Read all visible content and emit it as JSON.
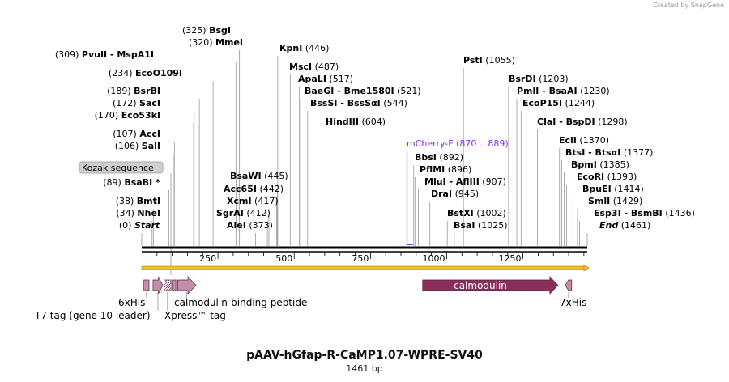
{
  "credit": "Created by SnapGene",
  "title": "pAAV-hGfap-R-CaMP1.07-WPRE-SV40",
  "length_label": "1461 bp",
  "sequence_length": 1461,
  "colors": {
    "backbone": "#000000",
    "orf_line": "#f0c030",
    "calmodulin": "#8b2f5a",
    "small_feature": "#c090a8",
    "primer": "#8a2be2",
    "label_box": "#d0d0d0"
  },
  "ruler": [
    "250",
    "500",
    "750",
    "1000",
    "1250"
  ],
  "sites": [
    {
      "name": "Start",
      "pos": "(0)",
      "bp": 0,
      "italic": true
    },
    {
      "name": "NheI",
      "pos": "(34)",
      "bp": 34
    },
    {
      "name": "BmtI",
      "pos": "(38)",
      "bp": 38
    },
    {
      "name": "BsaBI *",
      "pos": "(89)",
      "bp": 89
    },
    {
      "name": "SalI",
      "pos": "(106)",
      "bp": 106
    },
    {
      "name": "AccI",
      "pos": "(107)",
      "bp": 107
    },
    {
      "name": "Eco53kI",
      "pos": "(170)",
      "bp": 170
    },
    {
      "name": "SacI",
      "pos": "(172)",
      "bp": 172
    },
    {
      "name": "BsrBI",
      "pos": "(189)",
      "bp": 189
    },
    {
      "name": "EcoO109I",
      "pos": "(234)",
      "bp": 234
    },
    {
      "name": "PvuII  -  MspA1I",
      "pos": "(309)",
      "bp": 309
    },
    {
      "name": "MmeI",
      "pos": "(320)",
      "bp": 320
    },
    {
      "name": "BsgI",
      "pos": "(325)",
      "bp": 325
    },
    {
      "name": "AleI",
      "pos": "(373)",
      "bp": 373
    },
    {
      "name": "SgrAI",
      "pos": "(412)",
      "bp": 412
    },
    {
      "name": "XcmI",
      "pos": "(417)",
      "bp": 417
    },
    {
      "name": "Acc65I",
      "pos": "(442)",
      "bp": 442
    },
    {
      "name": "BsaWI",
      "pos": "(445)",
      "bp": 445
    },
    {
      "name": "KpnI",
      "pos": "(446)",
      "bp": 446
    },
    {
      "name": "MscI",
      "pos": "(487)",
      "bp": 487
    },
    {
      "name": "ApaLI",
      "pos": "(517)",
      "bp": 517
    },
    {
      "name": "BaeGI  -  Bme1580I",
      "pos": "(521)",
      "bp": 521
    },
    {
      "name": "BssSI  -  BssSαI",
      "pos": "(544)",
      "bp": 544
    },
    {
      "name": "HindIII",
      "pos": "(604)",
      "bp": 604
    },
    {
      "name": "BbsI",
      "pos": "(892)",
      "bp": 892
    },
    {
      "name": "PflMI",
      "pos": "(896)",
      "bp": 896
    },
    {
      "name": "MluI  -  AflIII",
      "pos": "(907)",
      "bp": 907
    },
    {
      "name": "DraI",
      "pos": "(945)",
      "bp": 945
    },
    {
      "name": "BstXI",
      "pos": "(1002)",
      "bp": 1002
    },
    {
      "name": "BsaI",
      "pos": "(1025)",
      "bp": 1025
    },
    {
      "name": "PstI",
      "pos": "(1055)",
      "bp": 1055
    },
    {
      "name": "BsrDI",
      "pos": "(1203)",
      "bp": 1203
    },
    {
      "name": "PmlI  -  BsaAI",
      "pos": "(1230)",
      "bp": 1230
    },
    {
      "name": "EcoP15I",
      "pos": "(1244)",
      "bp": 1244
    },
    {
      "name": "ClaI  -  BspDI",
      "pos": "(1298)",
      "bp": 1298
    },
    {
      "name": "EciI",
      "pos": "(1370)",
      "bp": 1370
    },
    {
      "name": "BtsI  -  BtsαI",
      "pos": "(1377)",
      "bp": 1377
    },
    {
      "name": "BpmI",
      "pos": "(1385)",
      "bp": 1385
    },
    {
      "name": "EcoRI",
      "pos": "(1393)",
      "bp": 1393
    },
    {
      "name": "BpuEI",
      "pos": "(1414)",
      "bp": 1414
    },
    {
      "name": "SmlI",
      "pos": "(1429)",
      "bp": 1429
    },
    {
      "name": "Esp3I  -  BsmBI",
      "pos": "(1436)",
      "bp": 1436
    },
    {
      "name": "End",
      "pos": "(1461)",
      "bp": 1461,
      "italic": true
    }
  ],
  "primer": {
    "name": "mCherry-F",
    "range": "(870 .. 889)",
    "start_bp": 870,
    "end_bp": 889
  },
  "kozak": {
    "label": "Kozak sequence"
  },
  "features": [
    {
      "name": "6xHis",
      "start_bp": 7,
      "end_bp": 24,
      "kind": "box"
    },
    {
      "name": "T7 tag (gene 10 leader)",
      "start_bp": 37,
      "end_bp": 69,
      "kind": "arrow"
    },
    {
      "name": "Xpress™ tag",
      "start_bp": 73,
      "end_bp": 96,
      "kind": "hatched"
    },
    {
      "name": "",
      "start_bp": 100,
      "end_bp": 112,
      "kind": "box"
    },
    {
      "name": "calmodulin-binding peptide",
      "start_bp": 118,
      "end_bp": 178,
      "kind": "arrow"
    },
    {
      "name": "calmodulin",
      "start_bp": 921,
      "end_bp": 1365,
      "kind": "arrow"
    },
    {
      "name": "7xHis",
      "start_bp": 1389,
      "end_bp": 1410,
      "kind": "reverse"
    }
  ]
}
